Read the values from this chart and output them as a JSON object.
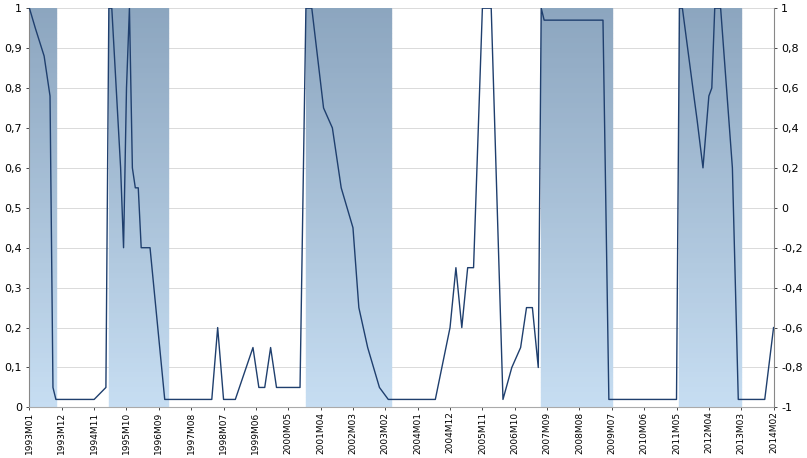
{
  "background_color": "#ffffff",
  "line_color": "#1F3F6E",
  "left_ylim": [
    0,
    1
  ],
  "right_ylim": [
    -1,
    1
  ],
  "left_ytick_labels": [
    "0",
    "0,1",
    "0,2",
    "0,3",
    "0,4",
    "0,5",
    "0,6",
    "0,7",
    "0,8",
    "0,9",
    "1"
  ],
  "left_ytick_vals": [
    0,
    0.1,
    0.2,
    0.3,
    0.4,
    0.5,
    0.6,
    0.7,
    0.8,
    0.9,
    1.0
  ],
  "right_ytick_labels": [
    "-1",
    "-0,8",
    "-0,6",
    "-0,4",
    "-0,2",
    "0",
    "0,2",
    "0,4",
    "0,6",
    "0,8",
    "1"
  ],
  "right_ytick_vals": [
    -1,
    -0.8,
    -0.6,
    -0.4,
    -0.2,
    0,
    0.2,
    0.4,
    0.6,
    0.8,
    1.0
  ],
  "start_year": 1993,
  "start_month": 1,
  "n_months": 254,
  "tick_every": 11,
  "recession_intervals": [
    [
      0,
      8
    ],
    [
      27,
      46
    ],
    [
      94,
      122
    ],
    [
      174,
      197
    ],
    [
      221,
      241
    ]
  ],
  "keypoints": [
    [
      0,
      1.0
    ],
    [
      2,
      0.95
    ],
    [
      5,
      0.88
    ],
    [
      7,
      0.78
    ],
    [
      8,
      0.05
    ],
    [
      9,
      0.02
    ],
    [
      14,
      0.02
    ],
    [
      22,
      0.02
    ],
    [
      26,
      0.05
    ],
    [
      27,
      1.0
    ],
    [
      28,
      1.0
    ],
    [
      31,
      0.6
    ],
    [
      32,
      0.4
    ],
    [
      33,
      0.8
    ],
    [
      34,
      1.0
    ],
    [
      35,
      0.6
    ],
    [
      36,
      0.55
    ],
    [
      37,
      0.55
    ],
    [
      38,
      0.4
    ],
    [
      41,
      0.4
    ],
    [
      46,
      0.02
    ],
    [
      50,
      0.02
    ],
    [
      55,
      0.02
    ],
    [
      62,
      0.02
    ],
    [
      64,
      0.2
    ],
    [
      66,
      0.02
    ],
    [
      70,
      0.02
    ],
    [
      76,
      0.15
    ],
    [
      78,
      0.05
    ],
    [
      80,
      0.05
    ],
    [
      82,
      0.15
    ],
    [
      84,
      0.05
    ],
    [
      88,
      0.05
    ],
    [
      92,
      0.05
    ],
    [
      94,
      1.0
    ],
    [
      96,
      1.0
    ],
    [
      100,
      0.75
    ],
    [
      103,
      0.7
    ],
    [
      104,
      0.65
    ],
    [
      105,
      0.6
    ],
    [
      106,
      0.55
    ],
    [
      108,
      0.5
    ],
    [
      110,
      0.45
    ],
    [
      112,
      0.25
    ],
    [
      115,
      0.15
    ],
    [
      119,
      0.05
    ],
    [
      122,
      0.02
    ],
    [
      128,
      0.02
    ],
    [
      133,
      0.02
    ],
    [
      138,
      0.02
    ],
    [
      143,
      0.2
    ],
    [
      145,
      0.35
    ],
    [
      147,
      0.2
    ],
    [
      149,
      0.35
    ],
    [
      151,
      0.35
    ],
    [
      154,
      1.0
    ],
    [
      157,
      1.0
    ],
    [
      161,
      0.02
    ],
    [
      164,
      0.1
    ],
    [
      167,
      0.15
    ],
    [
      169,
      0.25
    ],
    [
      171,
      0.25
    ],
    [
      173,
      0.1
    ],
    [
      174,
      1.0
    ],
    [
      175,
      0.97
    ],
    [
      176,
      0.97
    ],
    [
      180,
      0.97
    ],
    [
      185,
      0.97
    ],
    [
      190,
      0.97
    ],
    [
      195,
      0.97
    ],
    [
      197,
      0.02
    ],
    [
      202,
      0.02
    ],
    [
      208,
      0.02
    ],
    [
      214,
      0.02
    ],
    [
      218,
      0.02
    ],
    [
      220,
      0.02
    ],
    [
      221,
      1.0
    ],
    [
      222,
      1.0
    ],
    [
      225,
      0.83
    ],
    [
      227,
      0.72
    ],
    [
      229,
      0.6
    ],
    [
      231,
      0.78
    ],
    [
      232,
      0.8
    ],
    [
      233,
      1.0
    ],
    [
      235,
      1.0
    ],
    [
      237,
      0.8
    ],
    [
      239,
      0.6
    ],
    [
      241,
      0.02
    ],
    [
      246,
      0.02
    ],
    [
      250,
      0.02
    ],
    [
      253,
      0.2
    ]
  ]
}
